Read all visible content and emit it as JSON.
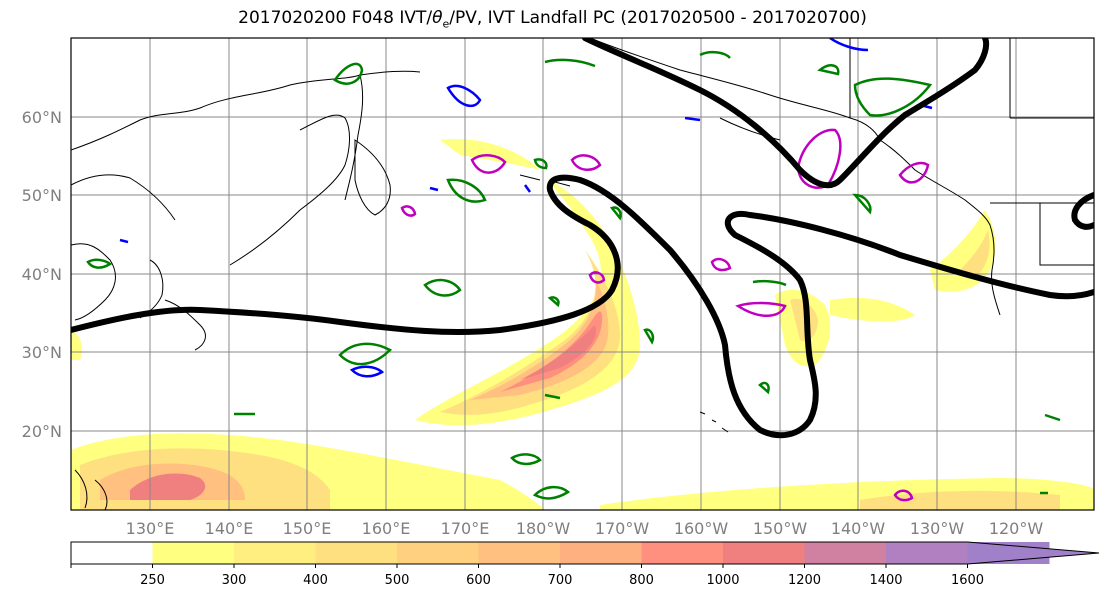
{
  "title_prefix": "2017020200 F048 IVT/",
  "title_theta": "θ",
  "title_sub": "e",
  "title_suffix": "/PV, IVT Landfall PC (2017020500 - 2017020700)",
  "lat_labels": [
    "60°N",
    "50°N",
    "40°N",
    "30°N",
    "20°N"
  ],
  "lon_labels": [
    "130°E",
    "140°E",
    "150°E",
    "160°E",
    "170°E",
    "180°W",
    "170°W",
    "160°W",
    "150°W",
    "140°W",
    "130°W",
    "120°W"
  ],
  "colorbar": {
    "levels": [
      "250",
      "300",
      "400",
      "500",
      "600",
      "700",
      "800",
      "1000",
      "1200",
      "1400",
      "1600"
    ],
    "colors": [
      "#ffffff",
      "#ffff80",
      "#ffef80",
      "#ffe080",
      "#ffd080",
      "#ffc080",
      "#ffb080",
      "#ff9080",
      "#f08080",
      "#d080a0",
      "#b080c0",
      "#a080c8"
    ]
  },
  "contour_colors": {
    "pv": "#000000",
    "theta_warm": "#008000",
    "theta_cold": "#0000ff",
    "theta_mag": "#c000c0"
  }
}
